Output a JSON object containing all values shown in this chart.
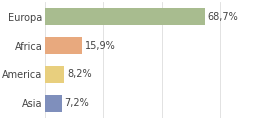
{
  "categories": [
    "Europa",
    "Africa",
    "America",
    "Asia"
  ],
  "values": [
    68.7,
    15.9,
    8.2,
    7.2
  ],
  "labels": [
    "68,7%",
    "15,9%",
    "8,2%",
    "7,2%"
  ],
  "colors": [
    "#a8bc8f",
    "#e8a97e",
    "#e8cf7e",
    "#7f8fbc"
  ],
  "xlim": [
    0,
    100
  ],
  "background_color": "#ffffff",
  "label_fontsize": 7.0,
  "bar_height": 0.6,
  "grid_color": "#dddddd",
  "grid_values": [
    0,
    25,
    50,
    75,
    100
  ]
}
